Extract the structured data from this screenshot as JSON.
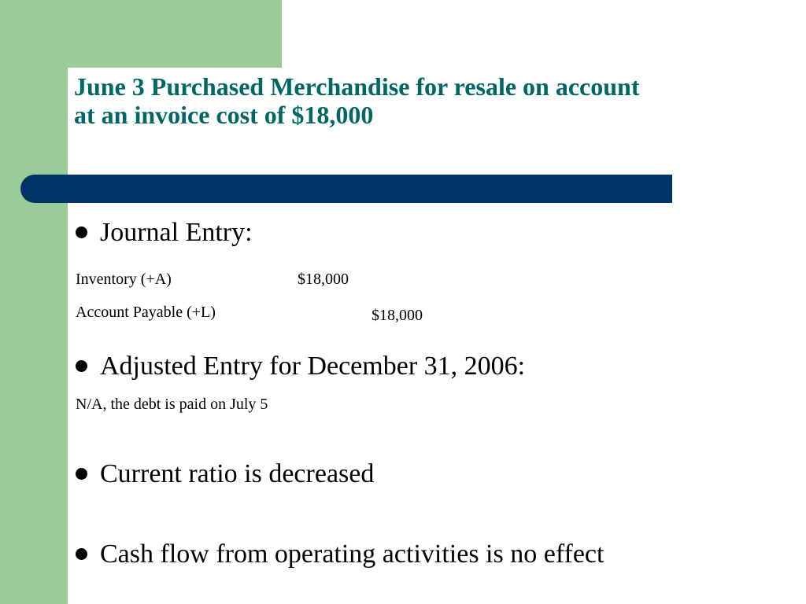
{
  "title_line1": "June 3 Purchased Merchandise for resale on account",
  "title_line2": "at an invoice cost of $18,000",
  "bullets": [
    {
      "label": "Journal Entry:"
    },
    {
      "label": "Adjusted Entry for December 31, 2006:"
    },
    {
      "label": "Current ratio is decreased"
    },
    {
      "label": "Cash flow from operating activities is no effect"
    }
  ],
  "journal": {
    "debit_account": "Inventory (+A)",
    "debit_amount": "$18,000",
    "credit_account": "Account Payable (+L)",
    "credit_amount": "$18,000"
  },
  "adjusted_note": "N/A, the debt is paid on July 5",
  "colors": {
    "title": "#006666",
    "sidebar_green": "#99cc99",
    "rule_bar": "#003366"
  }
}
